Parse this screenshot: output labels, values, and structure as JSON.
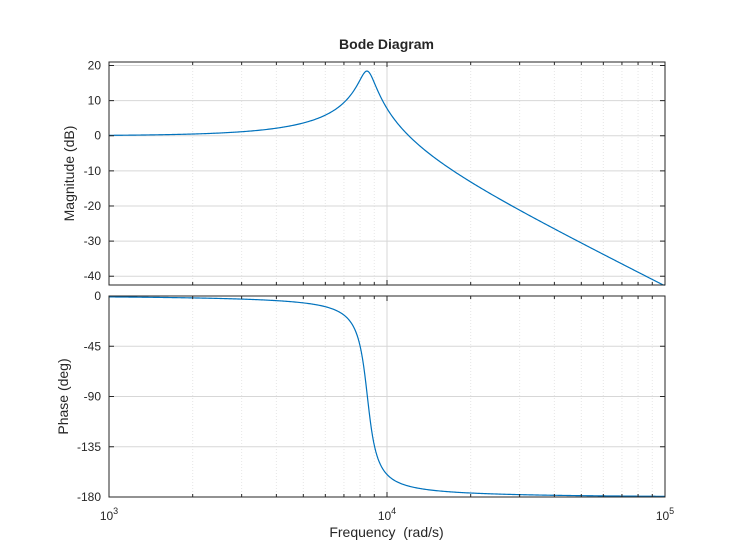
{
  "chart_data": {
    "type": "line",
    "title": "Bode Diagram",
    "xlabel": "Frequency  (rad/s)",
    "xscale": "log",
    "xlim": [
      1000,
      100000
    ],
    "x_ticks": [
      {
        "value": 1000,
        "base": "10",
        "exp": "3"
      },
      {
        "value": 10000,
        "base": "10",
        "exp": "4"
      },
      {
        "value": 100000,
        "base": "10",
        "exp": "5"
      }
    ],
    "grid": true,
    "line_color": "#0072BD",
    "system": {
      "natural_frequency": 8500,
      "damping_ratio": 0.06,
      "dc_gain": 1
    },
    "panels": [
      {
        "ylabel": "Magnitude (dB)",
        "ylim": [
          -42.5,
          21
        ],
        "yticks": [
          20,
          10,
          0,
          -10,
          -20,
          -30,
          -40
        ],
        "series": {
          "x": [
            1000,
            2000,
            3000,
            4000,
            5000,
            6000,
            7000,
            7500,
            8000,
            8500,
            9000,
            9500,
            10000,
            12000,
            15000,
            20000,
            30000,
            50000,
            70000,
            100000
          ],
          "y": [
            0.1,
            0.5,
            1.2,
            2.2,
            3.8,
            6.0,
            9.3,
            11.8,
            15.3,
            18.4,
            15.5,
            10.5,
            6.6,
            0.7,
            -6.0,
            -13.5,
            -21.8,
            -30.8,
            -36.7,
            -42.9
          ]
        }
      },
      {
        "ylabel": "Phase (deg)",
        "ylim": [
          -180,
          0
        ],
        "yticks": [
          0,
          -45,
          -90,
          -135,
          -180
        ],
        "series": {
          "x": [
            1000,
            2000,
            3000,
            4000,
            5000,
            6000,
            7000,
            7500,
            8000,
            8500,
            9000,
            9500,
            10000,
            12000,
            15000,
            20000,
            30000,
            50000,
            70000,
            100000
          ],
          "y": [
            -0.8,
            -1.6,
            -2.6,
            -3.8,
            -5.4,
            -8.0,
            -13.5,
            -19.3,
            -31.7,
            -90.0,
            -144.2,
            -159.0,
            -163.7,
            -171.4,
            -174.5,
            -176.3,
            -177.7,
            -178.7,
            -179.0,
            -179.3
          ]
        }
      }
    ]
  }
}
